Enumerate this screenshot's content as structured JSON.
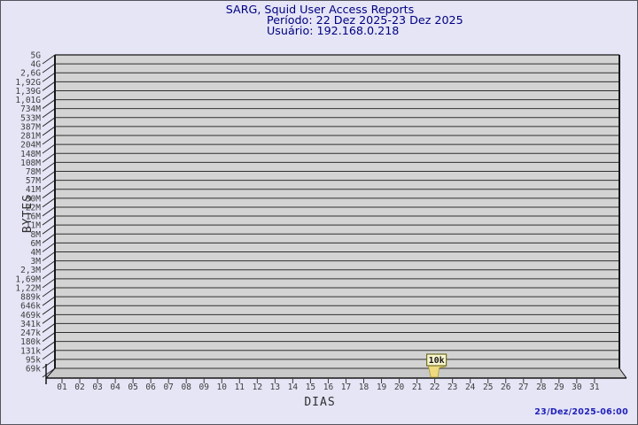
{
  "header": {
    "title": "SARG, Squid User Access Reports",
    "period_line": "Período: 22 Dez 2025-23 Dez 2025",
    "user_line": "Usuário: 192.168.0.218"
  },
  "footer": {
    "timestamp": "23/Dez/2025-06:00"
  },
  "chart_data": {
    "type": "bar",
    "title": "SARG, Squid User Access Reports",
    "subtitle_period": "Período: 22 Dez 2025-23 Dez 2025",
    "subtitle_user": "Usuário: 192.168.0.218",
    "xlabel": "DIAS",
    "ylabel": "BYTES",
    "y_scale": "logarithmic",
    "grid": "horizontal",
    "legend": "none",
    "x_categories": [
      "01",
      "02",
      "03",
      "04",
      "05",
      "06",
      "07",
      "08",
      "09",
      "10",
      "11",
      "12",
      "13",
      "14",
      "15",
      "16",
      "17",
      "18",
      "19",
      "20",
      "21",
      "22",
      "23",
      "24",
      "25",
      "26",
      "27",
      "28",
      "29",
      "30",
      "31"
    ],
    "y_tick_labels_top_to_bottom": [
      "5G",
      "4G",
      "2,6G",
      "1,92G",
      "1,39G",
      "1,01G",
      "734M",
      "533M",
      "387M",
      "281M",
      "204M",
      "148M",
      "108M",
      "78M",
      "57M",
      "41M",
      "30M",
      "22M",
      "16M",
      "11M",
      "8M",
      "6M",
      "4M",
      "3M",
      "2,3M",
      "1,69M",
      "1,22M",
      "889k",
      "646k",
      "469k",
      "341k",
      "247k",
      "180k",
      "131k",
      "95k",
      "69k"
    ],
    "y_range_labels": [
      "69k",
      "5G"
    ],
    "series": [
      {
        "name": "bytes-per-day",
        "points": [
          {
            "x": "22",
            "value_label": "10k",
            "value_bytes": 10000
          }
        ]
      }
    ],
    "colors": {
      "page_bg": "#e5e5f6",
      "page_border": "#54545e",
      "plot_fill": "#d3d3d3",
      "floor_fill": "#c9c9c9",
      "grid": "#2f2f2f",
      "frame": "#161616",
      "tick_text": "#3d3d3d",
      "title_text": "#000080",
      "axis_title_text": "#2e2e2e",
      "timestamp_text": "#2222bb",
      "bar_fill": "#eed97e",
      "bar_stroke": "#a69a3e",
      "flag_bg": "#faf6cf",
      "flag_border": "#6f6f23",
      "flag_text": "#1a1a1a"
    }
  }
}
